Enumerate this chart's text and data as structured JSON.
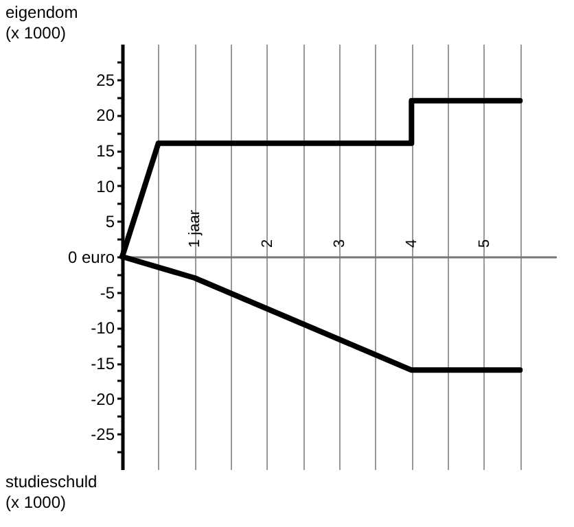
{
  "chart_data": {
    "type": "line",
    "ylabel": "eigendom\n(x 1000)",
    "annotations": [
      "studieschuld\n(x 1000)"
    ],
    "xlim": [
      0,
      6
    ],
    "ylim": [
      -30,
      30
    ],
    "xticks": [
      {
        "value": 0.5,
        "label": null
      },
      {
        "value": 1,
        "label": "1 jaar"
      },
      {
        "value": 1.5,
        "label": null
      },
      2,
      {
        "value": 2.5,
        "label": null
      },
      3,
      {
        "value": 3.5,
        "label": null
      },
      4,
      {
        "value": 4.5,
        "label": null
      },
      5,
      {
        "value": 5.5,
        "label": null
      }
    ],
    "yticks": [
      {
        "value": -27.5,
        "label": null
      },
      -25,
      {
        "value": -22.5,
        "label": null
      },
      -20,
      {
        "value": -17.5,
        "label": null
      },
      -15,
      {
        "value": -12.5,
        "label": null
      },
      -10,
      {
        "value": -7.5,
        "label": null
      },
      -5,
      {
        "value": -2.5,
        "label": null
      },
      {
        "value": 0,
        "label": "0 euro"
      },
      {
        "value": 2.5,
        "label": null
      },
      5,
      {
        "value": 7.5,
        "label": null
      },
      10,
      {
        "value": 12.5,
        "label": null
      },
      15,
      {
        "value": 17.5,
        "label": null
      },
      20,
      {
        "value": 22.5,
        "label": null
      },
      25,
      {
        "value": 27.5,
        "label": null
      }
    ],
    "grid": "x",
    "marker": "none",
    "line_style": "solid",
    "series": [
      {
        "color": "#000000",
        "x": [
          0,
          0.5,
          4,
          4,
          5.5
        ],
        "values": [
          0,
          16,
          16,
          22,
          22
        ]
      },
      {
        "color": "#000000",
        "x": [
          0,
          1,
          4,
          5.5
        ],
        "values": [
          0,
          -3,
          -16,
          -16
        ]
      }
    ]
  }
}
